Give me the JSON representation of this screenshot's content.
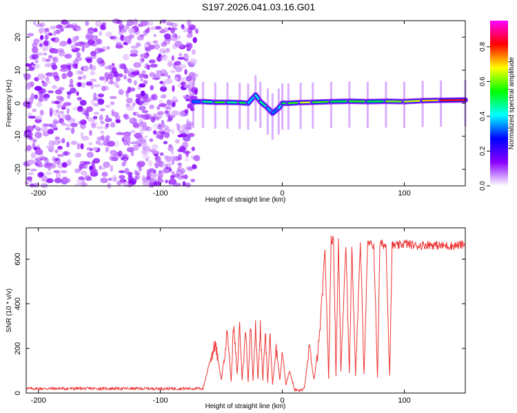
{
  "title": "S197.2026.041.03.16.G01",
  "chart_data": [
    {
      "type": "heatmap",
      "xlabel": "Height of straight line (km)",
      "ylabel": "Frequency (Hz)",
      "xlim": [
        -210,
        150
      ],
      "ylim": [
        -25,
        25
      ],
      "xticks": [
        -200,
        -100,
        0,
        100
      ],
      "yticks": [
        -20,
        -10,
        0,
        10,
        20
      ],
      "colorbar": {
        "label": "Normalized spectral amplitude",
        "range": [
          0.0,
          0.95
        ],
        "ticks": [
          "0.0",
          "0.2",
          "0.4",
          "0.6",
          "0.8"
        ],
        "colors": [
          "#ffffff",
          "#8a00ff",
          "#0000ff",
          "#00ffff",
          "#00ff00",
          "#ffff00",
          "#ff0000",
          "#ff00ff"
        ]
      },
      "noise_region_x": [
        -210,
        -70
      ],
      "ridge": {
        "x": [
          -73,
          -65,
          -55,
          -45,
          -35,
          -28,
          -22,
          -18,
          -12,
          -8,
          -3,
          0,
          5,
          15,
          25,
          40,
          55,
          70,
          85,
          100,
          115,
          130,
          150
        ],
        "freq": [
          0.5,
          0.5,
          0.3,
          0.3,
          0.2,
          0.0,
          2.5,
          0.5,
          -1.5,
          -3.0,
          -1.5,
          0.0,
          0.0,
          0.2,
          0.3,
          0.5,
          0.6,
          0.5,
          0.6,
          0.5,
          0.8,
          0.9,
          1.0
        ],
        "amp": [
          0.35,
          0.5,
          0.6,
          0.5,
          0.55,
          0.4,
          0.45,
          0.5,
          0.4,
          0.35,
          0.45,
          0.55,
          0.6,
          0.7,
          0.6,
          0.55,
          0.6,
          0.55,
          0.65,
          0.7,
          0.75,
          0.85,
          0.9
        ]
      }
    },
    {
      "type": "line",
      "xlabel": "Height of straight line (km)",
      "ylabel": "SNR (10 * v/v)",
      "xlim": [
        -210,
        150
      ],
      "ylim": [
        0,
        740
      ],
      "xticks": [
        -200,
        -100,
        0,
        100
      ],
      "yticks": [
        0,
        200,
        400,
        600
      ],
      "series": [
        {
          "name": "SNR",
          "color": "#ee3333",
          "x": [
            -210,
            -150,
            -100,
            -65,
            -60,
            -55,
            -50,
            -45,
            -42,
            -40,
            -37,
            -35,
            -33,
            -30,
            -28,
            -26,
            -24,
            -22,
            -20,
            -18,
            -16,
            -14,
            -12,
            -10,
            -8,
            -5,
            -2,
            0,
            3,
            6,
            10,
            14,
            18,
            22,
            26,
            30,
            32,
            35,
            38,
            40,
            42,
            44,
            46,
            48,
            52,
            55,
            57,
            60,
            64,
            67,
            70,
            75,
            78,
            80,
            85,
            88,
            90,
            95,
            100,
            110,
            120,
            130,
            140,
            150
          ],
          "y": [
            20,
            20,
            20,
            20,
            130,
            220,
            60,
            280,
            50,
            300,
            80,
            320,
            60,
            280,
            50,
            310,
            60,
            300,
            60,
            300,
            60,
            280,
            50,
            250,
            40,
            200,
            60,
            180,
            40,
            100,
            15,
            10,
            20,
            200,
            60,
            220,
            380,
            640,
            60,
            690,
            680,
            80,
            680,
            100,
            670,
            90,
            660,
            80,
            670,
            90,
            670,
            660,
            70,
            670,
            660,
            80,
            660,
            660,
            670,
            660,
            665,
            660,
            660,
            665
          ]
        }
      ]
    }
  ]
}
